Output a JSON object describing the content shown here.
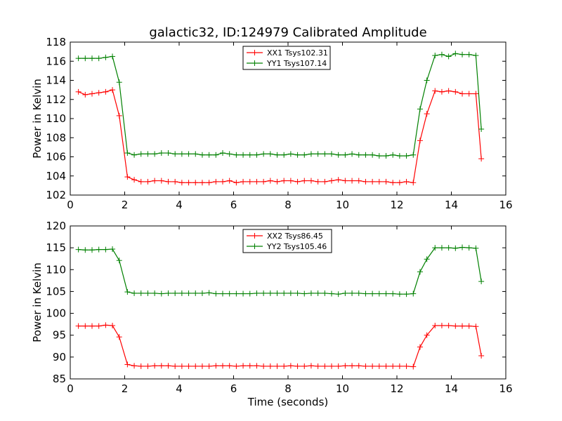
{
  "figure": {
    "title": "galactic32, ID:124979 Calibrated Amplitude"
  },
  "chart_data": [
    {
      "type": "line",
      "title": "galactic32, ID:124979 Calibrated Amplitude",
      "xlabel": "",
      "ylabel": "Power in Kelvin",
      "xlim": [
        0,
        16
      ],
      "ylim": [
        102,
        118
      ],
      "x_ticks": [
        0,
        2,
        4,
        6,
        8,
        10,
        12,
        14,
        16
      ],
      "y_ticks": [
        102,
        104,
        106,
        108,
        110,
        112,
        114,
        116,
        118
      ],
      "grid": false,
      "legend_position": "top-center",
      "x": [
        0.3,
        0.55,
        0.8,
        1.05,
        1.3,
        1.55,
        1.8,
        2.1,
        2.35,
        2.6,
        2.85,
        3.1,
        3.35,
        3.6,
        3.85,
        4.1,
        4.35,
        4.6,
        4.85,
        5.1,
        5.35,
        5.6,
        5.85,
        6.1,
        6.35,
        6.6,
        6.85,
        7.1,
        7.35,
        7.6,
        7.85,
        8.1,
        8.35,
        8.6,
        8.85,
        9.1,
        9.35,
        9.6,
        9.85,
        10.1,
        10.35,
        10.6,
        10.85,
        11.1,
        11.35,
        11.6,
        11.85,
        12.1,
        12.35,
        12.6,
        12.85,
        13.1,
        13.4,
        13.65,
        13.9,
        14.15,
        14.4,
        14.65,
        14.9,
        15.1
      ],
      "series": [
        {
          "name": "XX1 Tsys102.31",
          "color": "#ff0000",
          "marker": "+",
          "values": [
            112.8,
            112.5,
            112.6,
            112.7,
            112.8,
            113.0,
            110.3,
            103.9,
            103.6,
            103.4,
            103.4,
            103.5,
            103.5,
            103.4,
            103.4,
            103.3,
            103.3,
            103.3,
            103.3,
            103.3,
            103.4,
            103.4,
            103.5,
            103.3,
            103.4,
            103.4,
            103.4,
            103.4,
            103.5,
            103.4,
            103.5,
            103.5,
            103.4,
            103.5,
            103.5,
            103.4,
            103.4,
            103.5,
            103.6,
            103.5,
            103.5,
            103.5,
            103.4,
            103.4,
            103.4,
            103.4,
            103.3,
            103.3,
            103.4,
            103.3,
            107.7,
            110.5,
            112.9,
            112.8,
            112.9,
            112.8,
            112.6,
            112.6,
            112.6,
            105.8
          ]
        },
        {
          "name": "YY1 Tsys107.14",
          "color": "#008000",
          "marker": "+",
          "values": [
            116.3,
            116.3,
            116.3,
            116.3,
            116.4,
            116.5,
            113.8,
            106.4,
            106.2,
            106.3,
            106.3,
            106.3,
            106.4,
            106.4,
            106.3,
            106.3,
            106.3,
            106.3,
            106.2,
            106.2,
            106.2,
            106.4,
            106.3,
            106.2,
            106.2,
            106.2,
            106.2,
            106.3,
            106.3,
            106.2,
            106.2,
            106.3,
            106.2,
            106.2,
            106.3,
            106.3,
            106.3,
            106.3,
            106.2,
            106.2,
            106.3,
            106.2,
            106.2,
            106.2,
            106.1,
            106.1,
            106.2,
            106.1,
            106.1,
            106.2,
            111.0,
            114.0,
            116.6,
            116.7,
            116.5,
            116.8,
            116.7,
            116.7,
            116.6,
            108.9
          ]
        }
      ]
    },
    {
      "type": "line",
      "title": "",
      "xlabel": "Time (seconds)",
      "ylabel": "Power in Kelvin",
      "xlim": [
        0,
        16
      ],
      "ylim": [
        85,
        120
      ],
      "x_ticks": [
        0,
        2,
        4,
        6,
        8,
        10,
        12,
        14,
        16
      ],
      "y_ticks": [
        85,
        90,
        95,
        100,
        105,
        110,
        115,
        120
      ],
      "grid": false,
      "legend_position": "top-center",
      "x": [
        0.3,
        0.55,
        0.8,
        1.05,
        1.3,
        1.55,
        1.8,
        2.1,
        2.35,
        2.6,
        2.85,
        3.1,
        3.35,
        3.6,
        3.85,
        4.1,
        4.35,
        4.6,
        4.85,
        5.1,
        5.35,
        5.6,
        5.85,
        6.1,
        6.35,
        6.6,
        6.85,
        7.1,
        7.35,
        7.6,
        7.85,
        8.1,
        8.35,
        8.6,
        8.85,
        9.1,
        9.35,
        9.6,
        9.85,
        10.1,
        10.35,
        10.6,
        10.85,
        11.1,
        11.35,
        11.6,
        11.85,
        12.1,
        12.35,
        12.6,
        12.85,
        13.1,
        13.4,
        13.65,
        13.9,
        14.15,
        14.4,
        14.65,
        14.9,
        15.1
      ],
      "series": [
        {
          "name": "XX2 Tsys86.45",
          "color": "#ff0000",
          "marker": "+",
          "values": [
            97.1,
            97.1,
            97.1,
            97.1,
            97.3,
            97.2,
            94.6,
            88.3,
            88.0,
            87.9,
            87.9,
            88.0,
            88.0,
            88.0,
            87.9,
            87.9,
            87.9,
            87.9,
            87.9,
            87.9,
            88.0,
            88.0,
            88.0,
            87.9,
            88.0,
            88.0,
            88.0,
            87.9,
            87.9,
            87.9,
            87.9,
            88.0,
            87.9,
            87.9,
            88.0,
            87.9,
            87.9,
            87.9,
            87.9,
            88.0,
            88.0,
            88.0,
            87.9,
            87.9,
            87.9,
            87.9,
            87.9,
            87.9,
            87.9,
            87.8,
            92.3,
            95.0,
            97.2,
            97.2,
            97.2,
            97.1,
            97.1,
            97.1,
            97.0,
            90.3
          ]
        },
        {
          "name": "YY2 Tsys105.46",
          "color": "#008000",
          "marker": "+",
          "values": [
            114.6,
            114.5,
            114.5,
            114.6,
            114.6,
            114.7,
            112.1,
            104.9,
            104.6,
            104.6,
            104.6,
            104.6,
            104.5,
            104.6,
            104.6,
            104.6,
            104.6,
            104.6,
            104.6,
            104.7,
            104.5,
            104.5,
            104.5,
            104.5,
            104.5,
            104.5,
            104.6,
            104.6,
            104.6,
            104.6,
            104.6,
            104.6,
            104.6,
            104.5,
            104.6,
            104.6,
            104.6,
            104.5,
            104.4,
            104.6,
            104.6,
            104.6,
            104.5,
            104.5,
            104.5,
            104.5,
            104.5,
            104.4,
            104.4,
            104.5,
            109.5,
            112.4,
            115.0,
            115.0,
            115.0,
            114.9,
            115.1,
            115.0,
            114.9,
            107.3
          ]
        }
      ]
    }
  ]
}
